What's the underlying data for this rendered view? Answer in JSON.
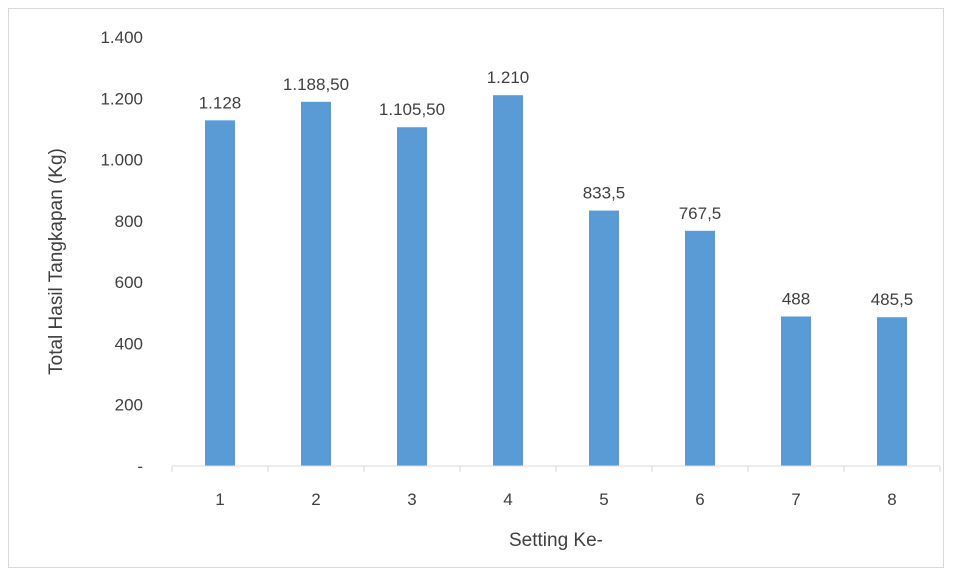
{
  "chart_data": {
    "type": "bar",
    "categories": [
      "1",
      "2",
      "3",
      "4",
      "5",
      "6",
      "7",
      "8"
    ],
    "values": [
      1128,
      1188.5,
      1105.5,
      1210,
      833.5,
      767.5,
      488,
      485.5
    ],
    "data_labels": [
      "1.128",
      "1.188,50",
      "1.105,50",
      "1.210",
      "833,5",
      "767,5",
      "488",
      "485,5"
    ],
    "xlabel": "Setting Ke-",
    "ylabel": "Total Hasil Tangkapan (Kg)",
    "ylim": [
      0,
      1400
    ],
    "yticks": [
      0,
      200,
      400,
      600,
      800,
      1000,
      1200,
      1400
    ],
    "ytick_labels": [
      "-",
      "200",
      "400",
      "600",
      "800",
      "1.000",
      "1.200",
      "1.400"
    ],
    "grid": false,
    "legend": "none",
    "bar_color": "#5b9bd5"
  }
}
